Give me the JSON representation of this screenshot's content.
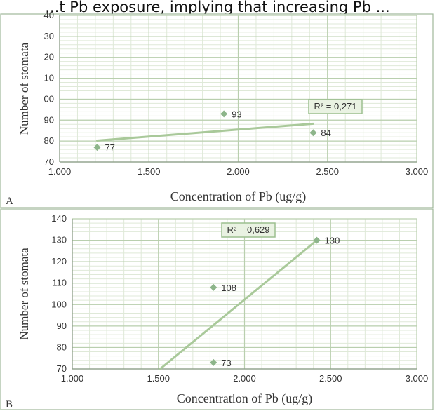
{
  "header_fragment": "...t Pb exposure, implying that increasing Pb ...",
  "chart_data": [
    {
      "type": "scatter",
      "panel_label": "A",
      "title": "",
      "xlabel": "Concentration of Pb (ug/g)",
      "ylabel": "Number of stomata",
      "xlim": [
        1.0,
        3.0
      ],
      "ylim": [
        70,
        140
      ],
      "xticks": [
        "1.000",
        "1.500",
        "2.000",
        "2.500",
        "3.000"
      ],
      "yticks": [
        "70",
        "80",
        "90",
        "00",
        "10",
        "20",
        "30",
        "40"
      ],
      "grid": true,
      "points": [
        {
          "x": 1.21,
          "y": 77,
          "label": "77"
        },
        {
          "x": 1.92,
          "y": 93,
          "label": "93"
        },
        {
          "x": 2.42,
          "y": 84,
          "label": "84"
        }
      ],
      "trendline": {
        "x": [
          1.21,
          2.42
        ],
        "y": [
          80.2,
          88.3
        ]
      },
      "r2_label": "R² = 0,271",
      "point_color": "#8db58a",
      "line_color": "#a9c99a"
    },
    {
      "type": "scatter",
      "panel_label": "B",
      "title": "",
      "xlabel": "Concentration of Pb (ug/g)",
      "ylabel": "Number of stomata",
      "xlim": [
        1.0,
        3.0
      ],
      "ylim": [
        70,
        140
      ],
      "xticks": [
        "1.000",
        "1.500",
        "2.000",
        "2.500",
        "3.000"
      ],
      "yticks": [
        "70",
        "80",
        "90",
        "100",
        "110",
        "120",
        "130",
        "140"
      ],
      "grid": true,
      "points": [
        {
          "x": 1.82,
          "y": 108,
          "label": "108"
        },
        {
          "x": 1.82,
          "y": 73,
          "label": "73"
        },
        {
          "x": 2.42,
          "y": 130,
          "label": "130"
        }
      ],
      "trendline": {
        "x": [
          1.51,
          2.42
        ],
        "y": [
          70,
          130
        ]
      },
      "r2_label": "R² = 0,629",
      "point_color": "#8db58a",
      "line_color": "#a9c99a"
    }
  ],
  "colors": {
    "grid_major": "#b9cfae",
    "grid_minor": "#dfe9d8",
    "text": "#333333",
    "border": "#9fb79a"
  }
}
